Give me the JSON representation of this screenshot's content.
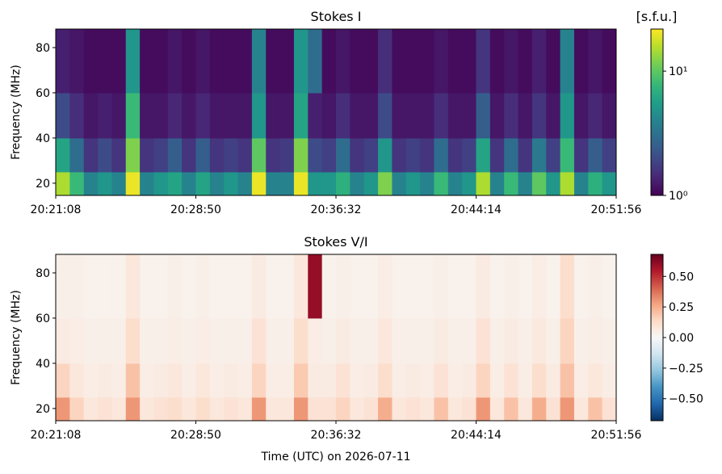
{
  "chart_data": [
    {
      "type": "heatmap",
      "title": "Stokes I",
      "ylabel": "Frequency (MHz)",
      "colormap": "viridis",
      "colorbar_label": "[s.f.u.]",
      "log": true,
      "xlim": [
        "20:21:08",
        "20:51:56"
      ],
      "xticks": [
        "20:21:08",
        "20:28:50",
        "20:36:32",
        "20:44:14",
        "20:51:56"
      ],
      "ylim": [
        14.6,
        88.2
      ],
      "yticks": [
        20,
        40,
        60,
        80
      ],
      "y_bins": [
        14.6,
        25,
        40,
        60,
        88.2
      ],
      "clim": [
        1,
        21.8
      ],
      "cticks": [
        {
          "value": 1,
          "label": "10⁰"
        },
        {
          "value": 10,
          "label": "10¹"
        }
      ],
      "z": [
        [
          15,
          8,
          4,
          5,
          4,
          20,
          4,
          5,
          6,
          4,
          6,
          4,
          5,
          4,
          20,
          4,
          4,
          20,
          5,
          5,
          7,
          4,
          5,
          12,
          4,
          5,
          4,
          8,
          4,
          5,
          15,
          4,
          8,
          4,
          10,
          5,
          15,
          4,
          7,
          5
        ],
        [
          6,
          3,
          1.6,
          2,
          1.6,
          12,
          1.6,
          1.8,
          2.5,
          1.6,
          2.5,
          1.6,
          1.8,
          1.6,
          10,
          1.6,
          1.7,
          12,
          2,
          1.8,
          3,
          1.6,
          1.8,
          5,
          1.6,
          1.8,
          1.6,
          3,
          1.6,
          1.8,
          6,
          1.6,
          3,
          1.6,
          3.5,
          1.8,
          8,
          1.6,
          2.5,
          1.8
        ],
        [
          2,
          1.5,
          1.2,
          1.3,
          1.2,
          8,
          1.2,
          1.2,
          1.4,
          1.2,
          1.4,
          1.2,
          1.2,
          1.2,
          5,
          1.2,
          1.2,
          6,
          1.3,
          1.2,
          1.5,
          1.2,
          1.2,
          2,
          1.2,
          1.2,
          1.2,
          1.5,
          1.2,
          1.2,
          2.5,
          1.2,
          1.5,
          1.2,
          1.6,
          1.2,
          5,
          1.2,
          1.4,
          1.2
        ],
        [
          1.3,
          1.2,
          1.1,
          1.1,
          1.1,
          5,
          1.1,
          1.1,
          1.2,
          1.1,
          1.2,
          1.1,
          1.1,
          1.1,
          4,
          1.1,
          1.1,
          5,
          3,
          1.1,
          1.2,
          1.1,
          1.1,
          1.5,
          1.1,
          1.1,
          1.1,
          1.2,
          1.1,
          1.1,
          1.6,
          1.1,
          1.2,
          1.1,
          1.3,
          1.1,
          4,
          1.1,
          1.2,
          1.1
        ]
      ]
    },
    {
      "type": "heatmap",
      "title": "Stokes V/I",
      "ylabel": "Frequency (MHz)",
      "xlabel": "Time (UTC) on 2026-07-11",
      "colormap": "RdBu_r",
      "log": false,
      "xlim": [
        "20:21:08",
        "20:51:56"
      ],
      "xticks": [
        "20:21:08",
        "20:28:50",
        "20:36:32",
        "20:44:14",
        "20:51:56"
      ],
      "ylim": [
        14.6,
        88.2
      ],
      "yticks": [
        20,
        40,
        60,
        80
      ],
      "y_bins": [
        14.6,
        25,
        40,
        60,
        88.2
      ],
      "clim": [
        -0.68,
        0.68
      ],
      "cticks": [
        {
          "value": -0.5,
          "label": "−0.50"
        },
        {
          "value": -0.25,
          "label": "−0.25"
        },
        {
          "value": 0,
          "label": "0.00"
        },
        {
          "value": 0.25,
          "label": "0.25"
        },
        {
          "value": 0.5,
          "label": "0.50"
        }
      ],
      "z": [
        [
          0.3,
          0.15,
          0.08,
          0.1,
          0.08,
          0.3,
          0.08,
          0.1,
          0.12,
          0.08,
          0.12,
          0.08,
          0.1,
          0.08,
          0.3,
          0.08,
          0.08,
          0.3,
          0.1,
          0.1,
          0.15,
          0.08,
          0.1,
          0.25,
          0.08,
          0.1,
          0.08,
          0.2,
          0.08,
          0.1,
          0.3,
          0.08,
          0.2,
          0.08,
          0.25,
          0.1,
          0.3,
          0.08,
          0.2,
          0.1
        ],
        [
          0.15,
          0.08,
          0.05,
          0.06,
          0.05,
          0.2,
          0.05,
          0.06,
          0.08,
          0.05,
          0.08,
          0.05,
          0.06,
          0.05,
          0.15,
          0.05,
          0.05,
          0.18,
          0.06,
          0.06,
          0.1,
          0.05,
          0.06,
          0.12,
          0.05,
          0.06,
          0.05,
          0.1,
          0.05,
          0.06,
          0.15,
          0.05,
          0.1,
          0.05,
          0.12,
          0.06,
          0.2,
          0.05,
          0.08,
          0.05
        ],
        [
          0.06,
          0.05,
          0.04,
          0.04,
          0.04,
          0.12,
          0.04,
          0.04,
          0.05,
          0.04,
          0.05,
          0.04,
          0.04,
          0.04,
          0.1,
          0.04,
          0.04,
          0.12,
          0.05,
          0.04,
          0.06,
          0.04,
          0.04,
          0.08,
          0.04,
          0.04,
          0.04,
          0.06,
          0.04,
          0.04,
          0.1,
          0.04,
          0.06,
          0.04,
          0.07,
          0.04,
          0.15,
          0.04,
          0.05,
          0.04
        ],
        [
          0.04,
          0.04,
          0.03,
          0.03,
          0.03,
          0.08,
          0.03,
          0.03,
          0.04,
          0.03,
          0.04,
          0.03,
          0.03,
          0.03,
          0.06,
          0.03,
          0.03,
          0.08,
          0.6,
          0.03,
          0.04,
          0.03,
          0.03,
          0.05,
          0.03,
          0.03,
          0.03,
          0.04,
          0.03,
          0.03,
          0.06,
          0.03,
          0.04,
          0.03,
          0.05,
          0.03,
          0.12,
          0.03,
          0.04,
          0.03
        ]
      ]
    }
  ]
}
